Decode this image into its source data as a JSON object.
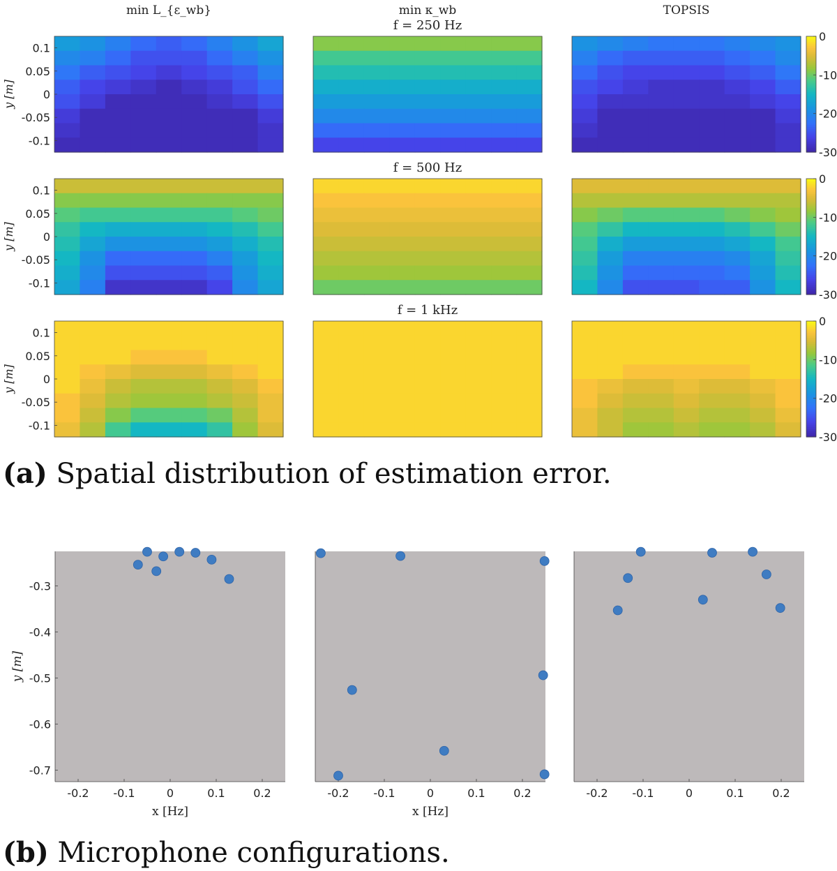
{
  "chart_data": [
    {
      "type": "heatmap",
      "column_titles": [
        "min L_{ε_wb}",
        "min κ_wb",
        "TOPSIS"
      ],
      "row_titles": [
        "f = 250 Hz",
        "f = 500 Hz",
        "f = 1 kHz"
      ],
      "ylabel": "y [m]",
      "yticks": [
        "0.1",
        "0.05",
        "0",
        "-0.05",
        "-0.1"
      ],
      "ytick_values": [
        0.1,
        0.05,
        0,
        -0.05,
        -0.1
      ],
      "ylim": [
        -0.125,
        0.125
      ],
      "colorbar": {
        "range": [
          -30,
          0
        ],
        "ticks": [
          "0",
          "-10",
          "-20",
          "-30"
        ],
        "tick_values": [
          0,
          -10,
          -20,
          -30
        ],
        "colormap": "parula"
      },
      "grid_columns": 9,
      "grid_rows": 8,
      "panels": [
        [
          [
            [
              -18,
              -19,
              -21,
              -23,
              -24,
              -23,
              -21,
              -19,
              -17
            ],
            [
              -20,
              -21,
              -23,
              -25,
              -25,
              -25,
              -23,
              -21,
              -19
            ],
            [
              -22,
              -24,
              -25,
              -26,
              -27,
              -26,
              -25,
              -24,
              -21
            ],
            [
              -24,
              -26,
              -27,
              -28,
              -29,
              -28,
              -27,
              -25,
              -23
            ],
            [
              -25,
              -27,
              -29,
              -29,
              -29,
              -29,
              -28,
              -27,
              -25
            ],
            [
              -27,
              -29,
              -29,
              -29,
              -29,
              -29,
              -29,
              -29,
              -27
            ],
            [
              -28,
              -29,
              -29,
              -29,
              -29,
              -29,
              -29,
              -29,
              -28
            ],
            [
              -29,
              -29,
              -29,
              -29,
              -29,
              -29,
              -29,
              -29,
              -28
            ]
          ],
          [
            [
              -9,
              -9,
              -9,
              -9,
              -9,
              -9,
              -9,
              -9,
              -9
            ],
            [
              -12,
              -12,
              -12,
              -12,
              -12,
              -12,
              -12,
              -12,
              -12
            ],
            [
              -14,
              -14,
              -14,
              -14,
              -14,
              -14,
              -14,
              -14,
              -14
            ],
            [
              -16,
              -16,
              -16,
              -16,
              -16,
              -16,
              -16,
              -16,
              -16
            ],
            [
              -18,
              -18,
              -18,
              -18,
              -18,
              -18,
              -18,
              -18,
              -18
            ],
            [
              -20,
              -20,
              -20,
              -20,
              -20,
              -20,
              -20,
              -20,
              -20
            ],
            [
              -23,
              -23,
              -23,
              -23,
              -23,
              -23,
              -23,
              -23,
              -23
            ],
            [
              -26,
              -26,
              -26,
              -26,
              -26,
              -26,
              -26,
              -26,
              -26
            ]
          ],
          [
            [
              -19,
              -20,
              -21,
              -22,
              -22,
              -22,
              -21,
              -20,
              -19
            ],
            [
              -21,
              -23,
              -24,
              -24,
              -24,
              -24,
              -23,
              -22,
              -20
            ],
            [
              -23,
              -25,
              -26,
              -26,
              -26,
              -26,
              -25,
              -24,
              -22
            ],
            [
              -25,
              -26,
              -27,
              -28,
              -28,
              -28,
              -27,
              -26,
              -24
            ],
            [
              -26,
              -28,
              -28,
              -28,
              -28,
              -28,
              -28,
              -27,
              -26
            ],
            [
              -27,
              -29,
              -29,
              -29,
              -29,
              -29,
              -29,
              -29,
              -27
            ],
            [
              -28,
              -29,
              -29,
              -29,
              -29,
              -29,
              -29,
              -29,
              -28
            ],
            [
              -29,
              -29,
              -29,
              -29,
              -29,
              -29,
              -29,
              -29,
              -28
            ]
          ]
        ],
        [
          [
            [
              -6,
              -6,
              -6,
              -6,
              -6,
              -6,
              -6,
              -6,
              -6
            ],
            [
              -9,
              -9,
              -9,
              -9,
              -9,
              -9,
              -9,
              -9,
              -9
            ],
            [
              -11,
              -12,
              -12,
              -12,
              -12,
              -12,
              -12,
              -11,
              -10
            ],
            [
              -13,
              -15,
              -16,
              -16,
              -16,
              -16,
              -15,
              -14,
              -12
            ],
            [
              -14,
              -17,
              -19,
              -19,
              -19,
              -19,
              -18,
              -16,
              -14
            ],
            [
              -15,
              -19,
              -23,
              -23,
              -23,
              -23,
              -21,
              -18,
              -15
            ],
            [
              -16,
              -20,
              -25,
              -25,
              -25,
              -25,
              -24,
              -19,
              -16
            ],
            [
              -17,
              -21,
              -28,
              -28,
              -28,
              -28,
              -26,
              -20,
              -17
            ]
          ],
          [
            [
              -2,
              -2,
              -2,
              -2,
              -2,
              -2,
              -2,
              -2,
              -2
            ],
            [
              -3,
              -3,
              -3,
              -3,
              -3,
              -3,
              -3,
              -3,
              -3
            ],
            [
              -4,
              -4,
              -4,
              -4,
              -4,
              -4,
              -4,
              -4,
              -4
            ],
            [
              -5,
              -5,
              -5,
              -5,
              -5,
              -5,
              -5,
              -5,
              -5
            ],
            [
              -6,
              -6,
              -6,
              -6,
              -6,
              -6,
              -6,
              -6,
              -6
            ],
            [
              -7,
              -7,
              -7,
              -7,
              -7,
              -7,
              -7,
              -7,
              -7
            ],
            [
              -8,
              -8,
              -8,
              -8,
              -8,
              -8,
              -8,
              -8,
              -8
            ],
            [
              -10,
              -10,
              -10,
              -10,
              -10,
              -10,
              -10,
              -10,
              -10
            ]
          ],
          [
            [
              -5,
              -5,
              -5,
              -5,
              -5,
              -5,
              -5,
              -5,
              -5
            ],
            [
              -7,
              -7,
              -7,
              -7,
              -7,
              -7,
              -7,
              -7,
              -7
            ],
            [
              -9,
              -10,
              -11,
              -11,
              -11,
              -11,
              -10,
              -9,
              -8
            ],
            [
              -11,
              -13,
              -15,
              -15,
              -15,
              -15,
              -14,
              -12,
              -10
            ],
            [
              -12,
              -16,
              -18,
              -18,
              -18,
              -18,
              -17,
              -15,
              -12
            ],
            [
              -13,
              -18,
              -21,
              -21,
              -21,
              -21,
              -20,
              -17,
              -13
            ],
            [
              -14,
              -19,
              -23,
              -23,
              -23,
              -23,
              -22,
              -18,
              -14
            ],
            [
              -15,
              -20,
              -25,
              -25,
              -25,
              -24,
              -24,
              -19,
              -15
            ]
          ]
        ],
        [
          [
            [
              -2,
              -2,
              -2,
              -2,
              -2,
              -2,
              -2,
              -2,
              -2
            ],
            [
              -2,
              -2,
              -2,
              -2,
              -2,
              -2,
              -2,
              -2,
              -2
            ],
            [
              -2,
              -2,
              -2,
              -3,
              -3,
              -3,
              -2,
              -2,
              -2
            ],
            [
              -2,
              -3,
              -4,
              -5,
              -5,
              -5,
              -4,
              -3,
              -2
            ],
            [
              -2,
              -4,
              -6,
              -7,
              -7,
              -7,
              -6,
              -5,
              -3
            ],
            [
              -3,
              -5,
              -7,
              -8,
              -8,
              -8,
              -7,
              -6,
              -4
            ],
            [
              -3,
              -6,
              -9,
              -11,
              -11,
              -11,
              -10,
              -7,
              -4
            ],
            [
              -4,
              -7,
              -12,
              -15,
              -15,
              -15,
              -13,
              -8,
              -5
            ]
          ],
          [
            [
              -2,
              -2,
              -2,
              -2,
              -2,
              -2,
              -2,
              -2,
              -2
            ],
            [
              -2,
              -2,
              -2,
              -2,
              -2,
              -2,
              -2,
              -2,
              -2
            ],
            [
              -2,
              -2,
              -2,
              -2,
              -2,
              -2,
              -2,
              -2,
              -2
            ],
            [
              -2,
              -2,
              -2,
              -2,
              -2,
              -2,
              -2,
              -2,
              -2
            ],
            [
              -2,
              -2,
              -2,
              -2,
              -2,
              -2,
              -2,
              -2,
              -2
            ],
            [
              -2,
              -2,
              -2,
              -2,
              -2,
              -2,
              -2,
              -2,
              -2
            ],
            [
              -2,
              -2,
              -2,
              -2,
              -2,
              -2,
              -2,
              -2,
              -2
            ],
            [
              -2,
              -2,
              -2,
              -2,
              -2,
              -2,
              -2,
              -2,
              -2
            ]
          ],
          [
            [
              -2,
              -2,
              -2,
              -2,
              -2,
              -2,
              -2,
              -2,
              -2
            ],
            [
              -2,
              -2,
              -2,
              -2,
              -2,
              -2,
              -2,
              -2,
              -2
            ],
            [
              -2,
              -2,
              -2,
              -2,
              -2,
              -2,
              -2,
              -2,
              -2
            ],
            [
              -2,
              -2,
              -3,
              -3,
              -3,
              -3,
              -3,
              -2,
              -2
            ],
            [
              -3,
              -4,
              -5,
              -5,
              -4,
              -5,
              -5,
              -4,
              -3
            ],
            [
              -3,
              -5,
              -6,
              -6,
              -5,
              -6,
              -6,
              -5,
              -3
            ],
            [
              -4,
              -6,
              -7,
              -7,
              -6,
              -7,
              -7,
              -6,
              -4
            ],
            [
              -4,
              -6,
              -8,
              -8,
              -7,
              -8,
              -8,
              -7,
              -5
            ]
          ]
        ]
      ]
    },
    {
      "type": "scatter",
      "xlabel": "x [Hz]",
      "ylabel": "y [m]",
      "xlim": [
        -0.25,
        0.25
      ],
      "ylim": [
        -0.725,
        -0.225
      ],
      "xticks": [
        "-0.2",
        "-0.1",
        "0",
        "0.1",
        "0.2"
      ],
      "xtick_values": [
        -0.2,
        -0.1,
        0,
        0.1,
        0.2
      ],
      "yticks": [
        "-0.3",
        "-0.4",
        "-0.5",
        "-0.6",
        "-0.7"
      ],
      "ytick_values": [
        -0.3,
        -0.4,
        -0.5,
        -0.6,
        -0.7
      ],
      "series": [
        {
          "name": "min L_{ε_wb}",
          "x": [
            -0.05,
            0.02,
            0.055,
            -0.07,
            -0.015,
            -0.03,
            0.09,
            0.128
          ],
          "y": [
            -0.226,
            -0.226,
            -0.228,
            -0.254,
            -0.236,
            -0.268,
            -0.243,
            -0.285
          ]
        },
        {
          "name": "min κ_wb",
          "x": [
            -0.238,
            -0.065,
            0.248,
            -0.17,
            0.245,
            0.03,
            -0.2,
            0.248
          ],
          "y": [
            -0.229,
            -0.235,
            -0.246,
            -0.526,
            -0.494,
            -0.658,
            -0.712,
            -0.709
          ]
        },
        {
          "name": "TOPSIS",
          "x": [
            -0.105,
            0.05,
            0.138,
            -0.133,
            0.168,
            0.03,
            -0.155,
            0.198
          ],
          "y": [
            -0.226,
            -0.228,
            -0.226,
            -0.283,
            -0.275,
            -0.33,
            -0.353,
            -0.348
          ]
        }
      ]
    }
  ],
  "captions": {
    "a_label": "(a)",
    "a_text": "Spatial distribution of estimation error.",
    "b_label": "(b)",
    "b_text": "Microphone configurations."
  }
}
